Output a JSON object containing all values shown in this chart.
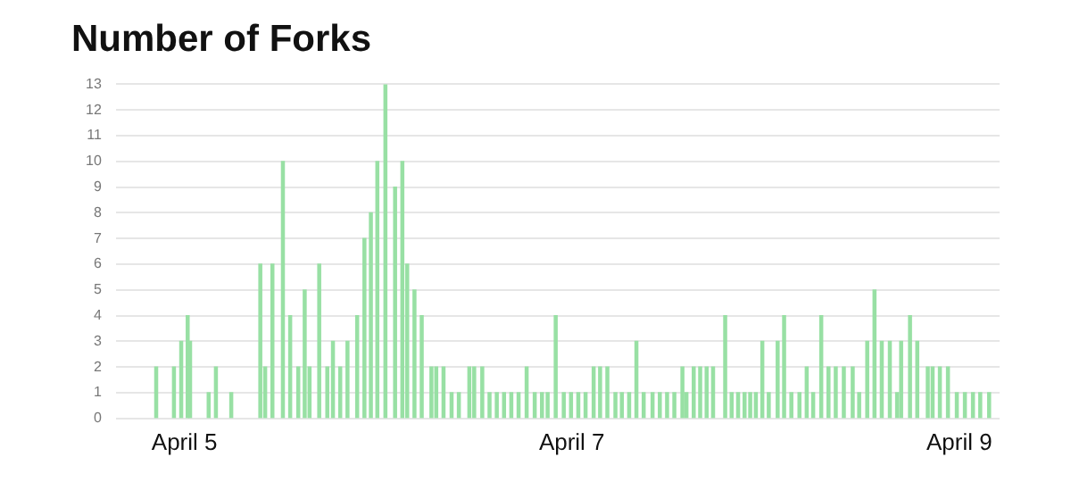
{
  "chart_data": {
    "type": "bar",
    "title": "Number of Forks",
    "x": [
      "--04-04T20:30",
      "--04-04T22:42",
      "--04-04T23:36",
      "--04-05T00:24",
      "--04-05T00:42",
      "--04-05T03:00",
      "--04-05T03:54",
      "--04-05T05:48",
      "--04-05T09:24",
      "--04-05T10:00",
      "--04-05T10:54",
      "--04-05T12:12",
      "--04-05T13:06",
      "--04-05T14:06",
      "--04-05T14:54",
      "--04-05T15:30",
      "--04-05T16:42",
      "--04-05T17:42",
      "--04-05T18:24",
      "--04-05T19:18",
      "--04-05T20:12",
      "--04-05T21:24",
      "--04-05T22:18",
      "--04-05T23:06",
      "--04-05T23:54",
      "--04-06T00:54",
      "--04-06T02:06",
      "--04-06T03:00",
      "--04-06T03:36",
      "--04-06T04:30",
      "--04-06T05:24",
      "--04-06T06:36",
      "--04-06T07:12",
      "--04-06T08:06",
      "--04-06T09:06",
      "--04-06T10:00",
      "--04-06T11:18",
      "--04-06T11:54",
      "--04-06T12:54",
      "--04-06T13:48",
      "--04-06T14:42",
      "--04-06T15:36",
      "--04-06T16:30",
      "--04-06T17:24",
      "--04-06T18:24",
      "--04-06T19:24",
      "--04-06T20:18",
      "--04-06T21:00",
      "--04-06T22:00",
      "--04-06T23:00",
      "--04-06T23:54",
      "--04-07T00:48",
      "--04-07T01:42",
      "--04-07T02:42",
      "--04-07T03:30",
      "--04-07T04:24",
      "--04-07T05:24",
      "--04-07T06:12",
      "--04-07T07:06",
      "--04-07T08:00",
      "--04-07T08:54",
      "--04-07T10:00",
      "--04-07T10:54",
      "--04-07T11:48",
      "--04-07T12:42",
      "--04-07T13:42",
      "--04-07T14:12",
      "--04-07T15:06",
      "--04-07T15:54",
      "--04-07T16:42",
      "--04-07T17:30",
      "--04-07T19:00",
      "--04-07T19:48",
      "--04-07T20:36",
      "--04-07T21:24",
      "--04-07T22:06",
      "--04-07T22:48",
      "--04-07T23:36",
      "--04-08T00:24",
      "--04-08T01:30",
      "--04-08T02:18",
      "--04-08T03:12",
      "--04-08T04:12",
      "--04-08T05:06",
      "--04-08T05:54",
      "--04-08T06:54",
      "--04-08T07:48",
      "--04-08T08:42",
      "--04-08T09:42",
      "--04-08T10:48",
      "--04-08T11:36",
      "--04-08T12:36",
      "--04-08T13:30",
      "--04-08T14:24",
      "--04-08T15:24",
      "--04-08T16:18",
      "--04-08T16:48",
      "--04-08T17:54",
      "--04-08T18:48",
      "--04-08T20:06",
      "--04-08T20:42",
      "--04-08T21:36",
      "--04-08T22:36",
      "--04-08T23:42",
      "--04-09T00:42",
      "--04-09T01:42",
      "--04-09T02:36",
      "--04-09T03:42"
    ],
    "values": [
      2,
      2,
      3,
      4,
      3,
      1,
      2,
      1,
      6,
      2,
      6,
      10,
      4,
      2,
      5,
      2,
      6,
      2,
      3,
      2,
      3,
      4,
      7,
      8,
      10,
      13,
      9,
      10,
      6,
      5,
      4,
      2,
      2,
      2,
      1,
      1,
      2,
      2,
      2,
      1,
      1,
      1,
      1,
      1,
      2,
      1,
      1,
      1,
      4,
      1,
      1,
      1,
      1,
      2,
      2,
      2,
      1,
      1,
      1,
      3,
      1,
      1,
      1,
      1,
      1,
      2,
      1,
      2,
      2,
      2,
      2,
      4,
      1,
      1,
      1,
      1,
      1,
      3,
      1,
      3,
      4,
      1,
      1,
      2,
      1,
      4,
      2,
      2,
      2,
      2,
      1,
      3,
      5,
      3,
      3,
      1,
      3,
      4,
      3,
      2,
      2,
      2,
      2,
      1,
      1,
      1,
      1,
      1
    ],
    "color": "#98e0a4",
    "xlim": [
      "--04-04T15:30",
      "--04-09T05:00"
    ],
    "xticks": [
      {
        "value": "--04-05",
        "label": "April 5"
      },
      {
        "value": "--04-07",
        "label": "April 7"
      },
      {
        "value": "--04-09",
        "label": "April 9"
      }
    ],
    "ylim": [
      0,
      13
    ],
    "yticks": [
      0,
      1,
      2,
      3,
      4,
      5,
      6,
      7,
      8,
      9,
      10,
      11,
      12,
      13
    ],
    "grid": "y",
    "legend": false
  }
}
